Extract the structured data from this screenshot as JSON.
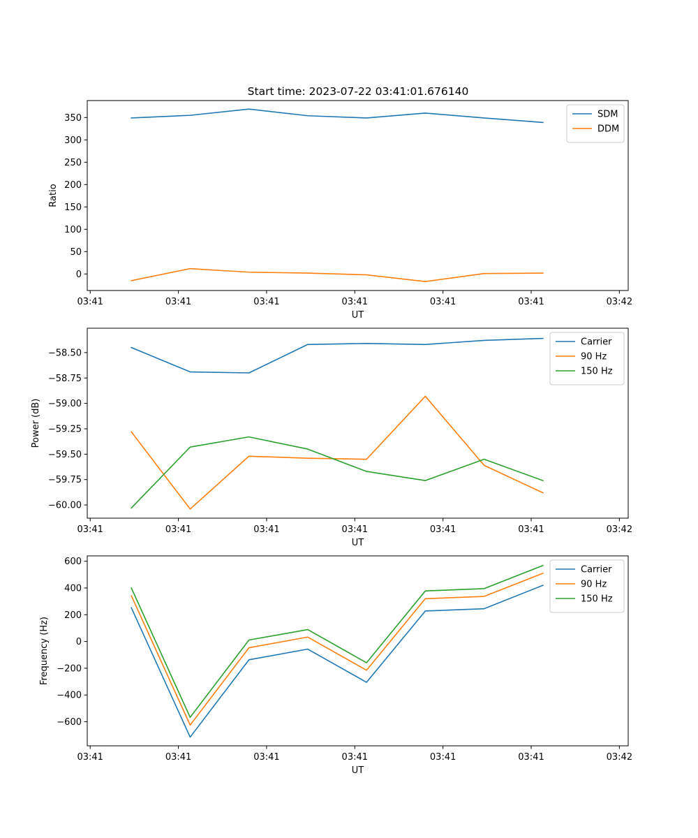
{
  "figure": {
    "title": "Start time: 2023-07-22 03:41:01.676140"
  },
  "colors": {
    "blue": "#1f77b4",
    "orange": "#ff7f0e",
    "green": "#2ca02c"
  },
  "chart_data": [
    {
      "id": "ratio",
      "type": "line",
      "title": "Start time: 2023-07-22 03:41:01.676140",
      "xlabel": "UT",
      "ylabel": "Ratio",
      "x": [
        0,
        1,
        2,
        3,
        4,
        5,
        6,
        7
      ],
      "xlim": [
        -0.75,
        8.45
      ],
      "xtick_values": [
        -0.7,
        0.8,
        2.3,
        3.8,
        5.3,
        6.8,
        8.3
      ],
      "xtick_labels": [
        "03:41",
        "03:41",
        "03:41",
        "03:41",
        "03:41",
        "03:41",
        "03:42"
      ],
      "ylim": [
        -37,
        388
      ],
      "yticks": [
        0,
        50,
        100,
        150,
        200,
        250,
        300,
        350
      ],
      "ytick_labels": [
        "0",
        "50",
        "100",
        "150",
        "200",
        "250",
        "300",
        "350"
      ],
      "legend_position": "top-right",
      "series": [
        {
          "name": "SDM",
          "color": "#1f77b4",
          "values": [
            349,
            355,
            369,
            354,
            349,
            360,
            349,
            339
          ]
        },
        {
          "name": "DDM",
          "color": "#ff7f0e",
          "values": [
            -15,
            12,
            4,
            2,
            -2,
            -17,
            1,
            2
          ]
        }
      ]
    },
    {
      "id": "power",
      "type": "line",
      "title": "",
      "xlabel": "UT",
      "ylabel": "Power (dB)",
      "x": [
        0,
        1,
        2,
        3,
        4,
        5,
        6,
        7
      ],
      "xlim": [
        -0.75,
        8.45
      ],
      "xtick_values": [
        -0.7,
        0.8,
        2.3,
        3.8,
        5.3,
        6.8,
        8.3
      ],
      "xtick_labels": [
        "03:41",
        "03:41",
        "03:41",
        "03:41",
        "03:41",
        "03:41",
        "03:42"
      ],
      "ylim": [
        -60.13,
        -58.26
      ],
      "yticks": [
        -60.0,
        -59.75,
        -59.5,
        -59.25,
        -59.0,
        -58.75,
        -58.5
      ],
      "ytick_labels": [
        "−60.00",
        "−59.75",
        "−59.50",
        "−59.25",
        "−59.00",
        "−58.75",
        "−58.50"
      ],
      "legend_position": "top-right",
      "series": [
        {
          "name": "Carrier",
          "color": "#1f77b4",
          "values": [
            -58.45,
            -58.69,
            -58.7,
            -58.42,
            -58.41,
            -58.42,
            -58.38,
            -58.36
          ]
        },
        {
          "name": "90 Hz",
          "color": "#ff7f0e",
          "values": [
            -59.28,
            -60.04,
            -59.52,
            -59.54,
            -59.55,
            -58.93,
            -59.61,
            -59.88
          ]
        },
        {
          "name": "150 Hz",
          "color": "#2ca02c",
          "values": [
            -60.03,
            -59.43,
            -59.33,
            -59.45,
            -59.67,
            -59.76,
            -59.55,
            -59.76
          ]
        }
      ]
    },
    {
      "id": "frequency",
      "type": "line",
      "title": "",
      "xlabel": "UT",
      "ylabel": "Frequency (Hz)",
      "x": [
        0,
        1,
        2,
        3,
        4,
        5,
        6,
        7
      ],
      "xlim": [
        -0.75,
        8.45
      ],
      "xtick_values": [
        -0.7,
        0.8,
        2.3,
        3.8,
        5.3,
        6.8,
        8.3
      ],
      "xtick_labels": [
        "03:41",
        "03:41",
        "03:41",
        "03:41",
        "03:41",
        "03:41",
        "03:42"
      ],
      "ylim": [
        -780,
        640
      ],
      "yticks": [
        -600,
        -400,
        -200,
        0,
        200,
        400,
        600
      ],
      "ytick_labels": [
        "−600",
        "−400",
        "−200",
        "0",
        "200",
        "400",
        "600"
      ],
      "legend_position": "top-right",
      "series": [
        {
          "name": "Carrier",
          "color": "#1f77b4",
          "values": [
            252,
            -715,
            -137,
            -57,
            -305,
            228,
            245,
            420
          ]
        },
        {
          "name": "90 Hz",
          "color": "#ff7f0e",
          "values": [
            342,
            -625,
            -47,
            33,
            -215,
            320,
            337,
            510
          ]
        },
        {
          "name": "150 Hz",
          "color": "#2ca02c",
          "values": [
            400,
            -567,
            11,
            89,
            -159,
            378,
            395,
            568
          ]
        }
      ]
    }
  ]
}
